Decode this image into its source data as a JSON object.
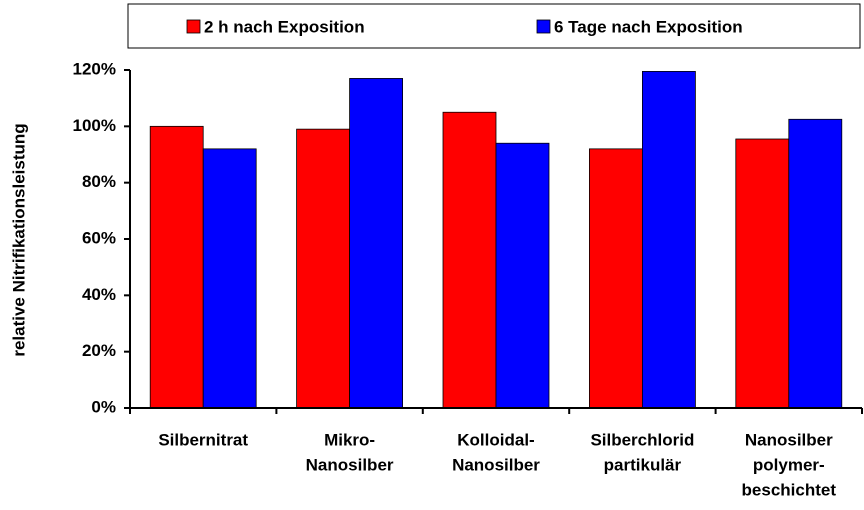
{
  "chart_data": {
    "type": "bar",
    "ylabel": "relative Nitrifikationsleistung",
    "categories": [
      [
        "Silbernitrat"
      ],
      [
        "Mikro-",
        "Nanosilber"
      ],
      [
        "Kolloidal-",
        "Nanosilber"
      ],
      [
        "Silberchlorid",
        "partikulär"
      ],
      [
        "Nanosilber",
        "polymer-",
        "beschichtet"
      ]
    ],
    "series": [
      {
        "name": "2 h nach Exposition",
        "color": "#ff0000",
        "values": [
          100,
          99,
          105,
          92,
          95.5
        ]
      },
      {
        "name": "6 Tage nach Exposition",
        "color": "#0000ff",
        "values": [
          92,
          117,
          94,
          119.5,
          102.5
        ]
      }
    ],
    "ylim": [
      0,
      120
    ],
    "yticks": [
      {
        "value": 0,
        "label": "0%"
      },
      {
        "value": 20,
        "label": "20%"
      },
      {
        "value": 40,
        "label": "40%"
      },
      {
        "value": 60,
        "label": "60%"
      },
      {
        "value": 80,
        "label": "80%"
      },
      {
        "value": 100,
        "label": "100%"
      },
      {
        "value": 120,
        "label": "120%"
      }
    ],
    "legend": "top"
  }
}
